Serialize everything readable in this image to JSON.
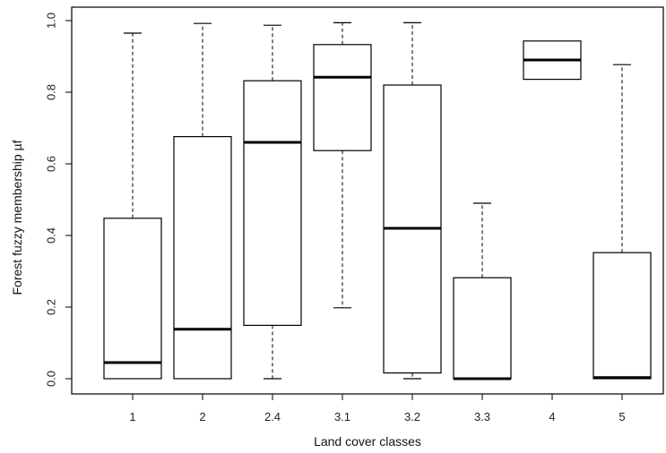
{
  "chart_data": {
    "type": "boxplot",
    "title": "",
    "xlabel": "Land cover classes",
    "ylabel": "Forest fuzzy membership µf",
    "ylim": [
      0.0,
      1.0
    ],
    "yticks": [
      "0.0",
      "0.2",
      "0.4",
      "0.6",
      "0.8",
      "1.0"
    ],
    "grid": false,
    "categories": [
      "1",
      "2",
      "2.4",
      "3.1",
      "3.2",
      "3.3",
      "4",
      "5"
    ],
    "boxes": [
      {
        "category": "1",
        "whisker_low": 0.0,
        "q1": 0.0,
        "median": 0.045,
        "q3": 0.448,
        "whisker_high": 0.965
      },
      {
        "category": "2",
        "whisker_low": 0.0,
        "q1": 0.0,
        "median": 0.138,
        "q3": 0.676,
        "whisker_high": 0.992
      },
      {
        "category": "2.4",
        "whisker_low": 0.0,
        "q1": 0.149,
        "median": 0.66,
        "q3": 0.832,
        "whisker_high": 0.987
      },
      {
        "category": "3.1",
        "whisker_low": 0.198,
        "q1": 0.637,
        "median": 0.842,
        "q3": 0.933,
        "whisker_high": 0.994
      },
      {
        "category": "3.2",
        "whisker_low": 0.0,
        "q1": 0.016,
        "median": 0.42,
        "q3": 0.82,
        "whisker_high": 0.994
      },
      {
        "category": "3.3",
        "whisker_low": 0.0,
        "q1": 0.0,
        "median": 0.0,
        "q3": 0.282,
        "whisker_high": 0.49
      },
      {
        "category": "4",
        "whisker_low": 0.836,
        "q1": 0.836,
        "median": 0.89,
        "q3": 0.943,
        "whisker_high": 0.943
      },
      {
        "category": "5",
        "whisker_low": 0.0,
        "q1": 0.0,
        "median": 0.003,
        "q3": 0.352,
        "whisker_high": 0.877
      }
    ]
  }
}
